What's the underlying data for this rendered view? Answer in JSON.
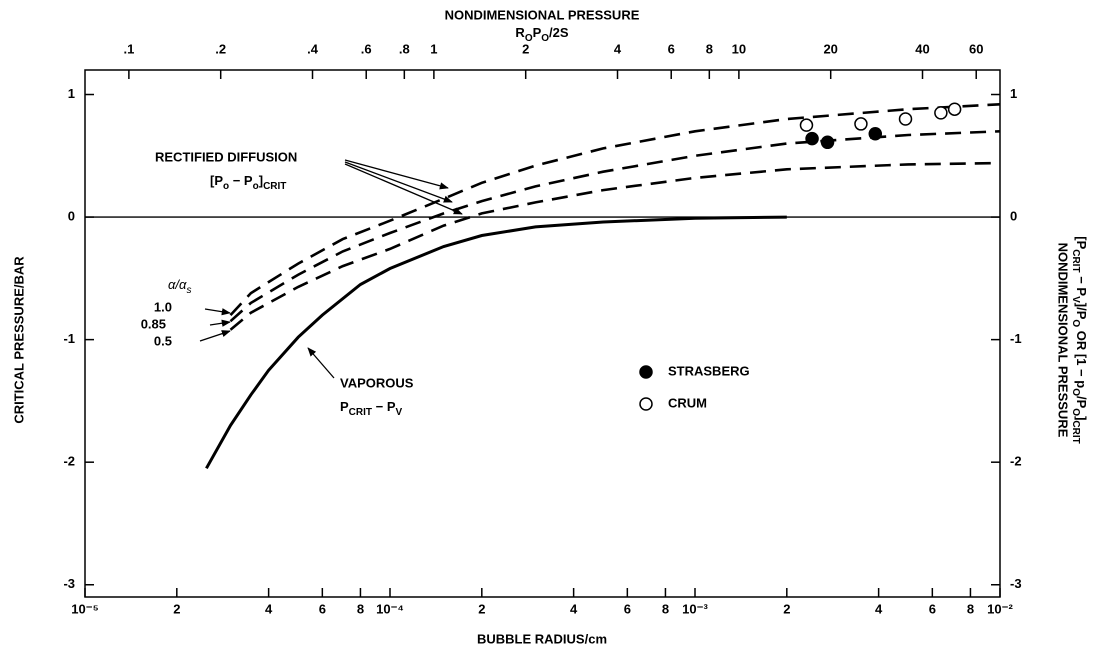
{
  "chart_data": {
    "type": "line",
    "title": "NONDIMENSIONAL PRESSURE",
    "subtitle": [
      {
        "text": "R"
      },
      {
        "text": "O",
        "sub": true
      },
      {
        "text": "P"
      },
      {
        "text": "O",
        "sub": true
      },
      {
        "text": "/2S"
      }
    ],
    "x_label": "BUBBLE RADIUS/cm",
    "y_label": "CRITICAL PRESSURE/BAR",
    "y2_label": "NONDIMENSIONAL PRESSURE",
    "y2_label_formula": [
      {
        "text": "[P"
      },
      {
        "text": "CRIT",
        "sub": true
      },
      {
        "text": " − P"
      },
      {
        "text": "V",
        "sub": true
      },
      {
        "text": "]/P"
      },
      {
        "text": "O",
        "sub": true
      },
      {
        "text": "  OR  [1 − p"
      },
      {
        "text": "O",
        "sub": true
      },
      {
        "text": "/P"
      },
      {
        "text": "O",
        "sub": true
      },
      {
        "text": "]"
      },
      {
        "text": "CRIT",
        "sub": true
      }
    ],
    "xscale": "log",
    "xlim": [
      1e-05,
      0.01
    ],
    "xticks": [
      {
        "value": 1e-05,
        "label": "10⁻⁵"
      },
      {
        "value": 2e-05,
        "label": "2"
      },
      {
        "value": 4e-05,
        "label": "4"
      },
      {
        "value": 6e-05,
        "label": "6"
      },
      {
        "value": 8e-05,
        "label": "8"
      },
      {
        "value": 0.0001,
        "label": "10⁻⁴"
      },
      {
        "value": 0.0002,
        "label": "2"
      },
      {
        "value": 0.0004,
        "label": "4"
      },
      {
        "value": 0.0006,
        "label": "6"
      },
      {
        "value": 0.0008,
        "label": "8"
      },
      {
        "value": 0.001,
        "label": "10⁻³"
      },
      {
        "value": 0.002,
        "label": "2"
      },
      {
        "value": 0.004,
        "label": "4"
      },
      {
        "value": 0.006,
        "label": "6"
      },
      {
        "value": 0.008,
        "label": "8"
      },
      {
        "value": 0.01,
        "label": "10⁻²"
      }
    ],
    "x2lim": [
      0.0718,
      71.8
    ],
    "x2ticks": [
      {
        "value": 0.1,
        "label": ".1"
      },
      {
        "value": 0.2,
        "label": ".2"
      },
      {
        "value": 0.4,
        "label": ".4"
      },
      {
        "value": 0.6,
        "label": ".6"
      },
      {
        "value": 0.8,
        "label": ".8"
      },
      1,
      2,
      4,
      6,
      8,
      10,
      20,
      40,
      60
    ],
    "ylim": [
      -3.1,
      1.2
    ],
    "yticks": [
      -3,
      -2,
      -1,
      0,
      1
    ],
    "y2lim": [
      -3.1,
      1.2
    ],
    "y2ticks": [
      -3,
      -2,
      -1,
      0,
      1
    ],
    "zero_line": true,
    "series": [
      {
        "name": "1.0",
        "style": "dashed",
        "color": "#000000",
        "x": [
          3e-05,
          3.5e-05,
          5e-05,
          7e-05,
          0.0001,
          0.00015,
          0.0002,
          0.0003,
          0.0005,
          0.001,
          0.002,
          0.005,
          0.01
        ],
        "values": [
          -0.8,
          -0.62,
          -0.38,
          -0.18,
          -0.03,
          0.15,
          0.28,
          0.42,
          0.56,
          0.7,
          0.8,
          0.88,
          0.92
        ]
      },
      {
        "name": "0.85",
        "style": "dashed",
        "color": "#000000",
        "x": [
          3e-05,
          3.5e-05,
          5e-05,
          7e-05,
          0.0001,
          0.00015,
          0.0002,
          0.0003,
          0.0005,
          0.001,
          0.002,
          0.005,
          0.01
        ],
        "values": [
          -0.85,
          -0.7,
          -0.47,
          -0.28,
          -0.13,
          0.03,
          0.13,
          0.25,
          0.37,
          0.5,
          0.6,
          0.67,
          0.7
        ]
      },
      {
        "name": "0.5",
        "style": "dashed",
        "color": "#000000",
        "x": [
          3e-05,
          3.5e-05,
          5e-05,
          7e-05,
          0.0001,
          0.00015,
          0.0002,
          0.0003,
          0.0005,
          0.001,
          0.002,
          0.005,
          0.01
        ],
        "values": [
          -0.92,
          -0.78,
          -0.57,
          -0.4,
          -0.26,
          -0.07,
          0.03,
          0.12,
          0.22,
          0.32,
          0.39,
          0.43,
          0.44
        ]
      },
      {
        "name": "VAPOROUS",
        "style": "solid",
        "color": "#000000",
        "x": [
          2.5e-05,
          3e-05,
          3.5e-05,
          4e-05,
          5e-05,
          6e-05,
          8e-05,
          0.0001,
          0.00015,
          0.0002,
          0.0003,
          0.0005,
          0.001,
          0.002
        ],
        "values": [
          -2.05,
          -1.7,
          -1.45,
          -1.25,
          -0.98,
          -0.8,
          -0.55,
          -0.42,
          -0.24,
          -0.15,
          -0.08,
          -0.04,
          -0.01,
          0
        ]
      },
      {
        "name": "STRASBERG",
        "style": "marker",
        "color": "#000000",
        "marker_fill": "#000000",
        "x": [
          0.00242,
          0.00272,
          0.0039
        ],
        "values": [
          0.64,
          0.61,
          0.68
        ]
      },
      {
        "name": "CRUM",
        "style": "marker",
        "color": "#000000",
        "marker_fill": "#ffffff",
        "x": [
          0.00232,
          0.0035,
          0.0049,
          0.0064,
          0.0071
        ],
        "values": [
          0.75,
          0.76,
          0.8,
          0.85,
          0.88
        ]
      }
    ],
    "annotations": {
      "rectified": "RECTIFIED DIFFUSION",
      "rectified_formula": [
        {
          "text": "[P"
        },
        {
          "text": "o",
          "sub": true
        },
        {
          "text": " − P"
        },
        {
          "text": "o",
          "sub": true
        },
        {
          "text": "]"
        },
        {
          "text": "CRIT",
          "sub": true
        }
      ],
      "ratio": [
        {
          "text": "α/α"
        },
        {
          "text": "s",
          "sub": true
        }
      ],
      "vaporous_formula": [
        {
          "text": "P"
        },
        {
          "text": "CRIT",
          "sub": true
        },
        {
          "text": " − P"
        },
        {
          "text": "V",
          "sub": true
        }
      ]
    }
  }
}
